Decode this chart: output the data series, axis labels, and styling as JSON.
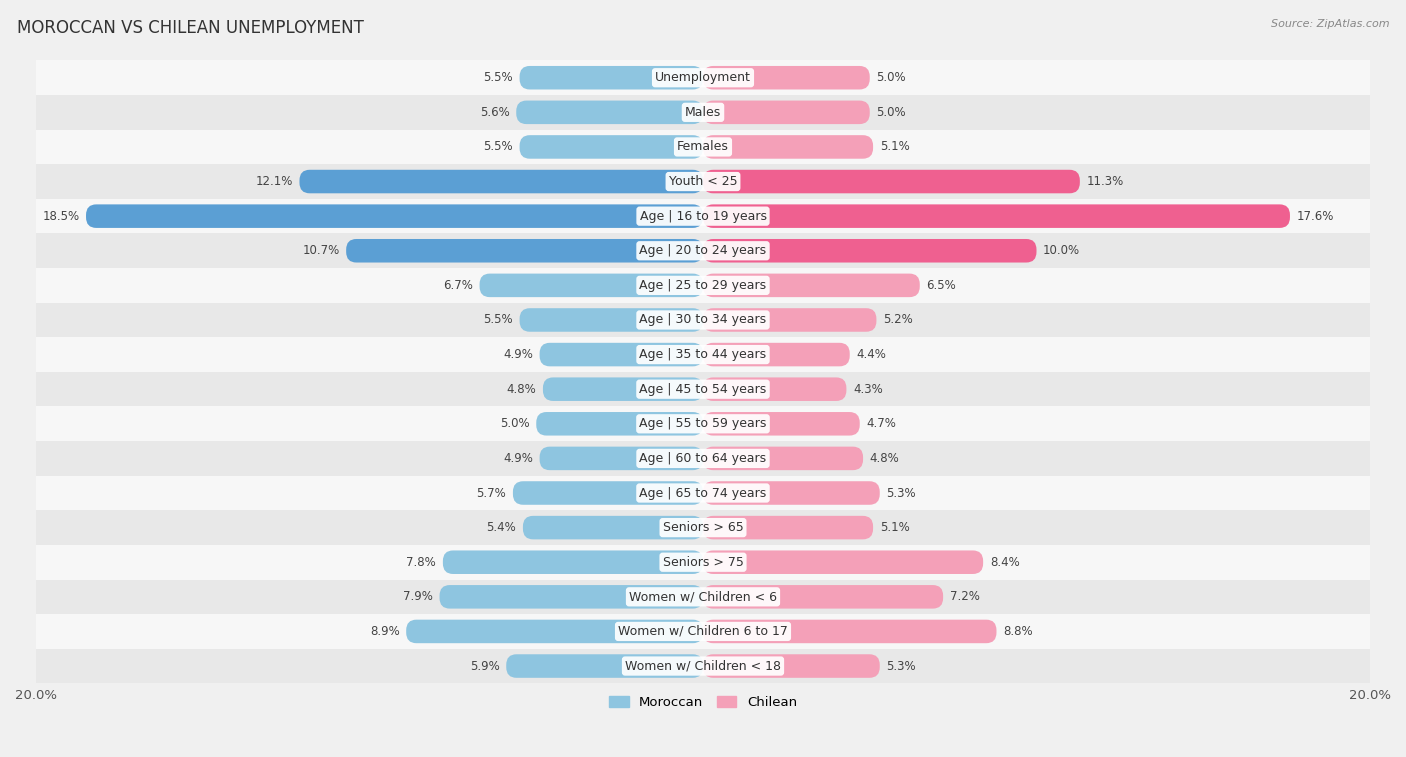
{
  "title": "MOROCCAN VS CHILEAN UNEMPLOYMENT",
  "source": "Source: ZipAtlas.com",
  "categories": [
    "Unemployment",
    "Males",
    "Females",
    "Youth < 25",
    "Age | 16 to 19 years",
    "Age | 20 to 24 years",
    "Age | 25 to 29 years",
    "Age | 30 to 34 years",
    "Age | 35 to 44 years",
    "Age | 45 to 54 years",
    "Age | 55 to 59 years",
    "Age | 60 to 64 years",
    "Age | 65 to 74 years",
    "Seniors > 65",
    "Seniors > 75",
    "Women w/ Children < 6",
    "Women w/ Children 6 to 17",
    "Women w/ Children < 18"
  ],
  "moroccan": [
    5.5,
    5.6,
    5.5,
    12.1,
    18.5,
    10.7,
    6.7,
    5.5,
    4.9,
    4.8,
    5.0,
    4.9,
    5.7,
    5.4,
    7.8,
    7.9,
    8.9,
    5.9
  ],
  "chilean": [
    5.0,
    5.0,
    5.1,
    11.3,
    17.6,
    10.0,
    6.5,
    5.2,
    4.4,
    4.3,
    4.7,
    4.8,
    5.3,
    5.1,
    8.4,
    7.2,
    8.8,
    5.3
  ],
  "moroccan_color": "#8ec5e0",
  "chilean_color": "#f4a0b8",
  "moroccan_color_highlight": "#5b9fd4",
  "chilean_color_highlight": "#ef6090",
  "axis_limit": 20.0,
  "bar_height": 0.68,
  "bg_color": "#f0f0f0",
  "row_color_even": "#f7f7f7",
  "row_color_odd": "#e8e8e8",
  "label_fontsize": 9.0,
  "title_fontsize": 12,
  "value_fontsize": 8.5,
  "source_fontsize": 8.0
}
